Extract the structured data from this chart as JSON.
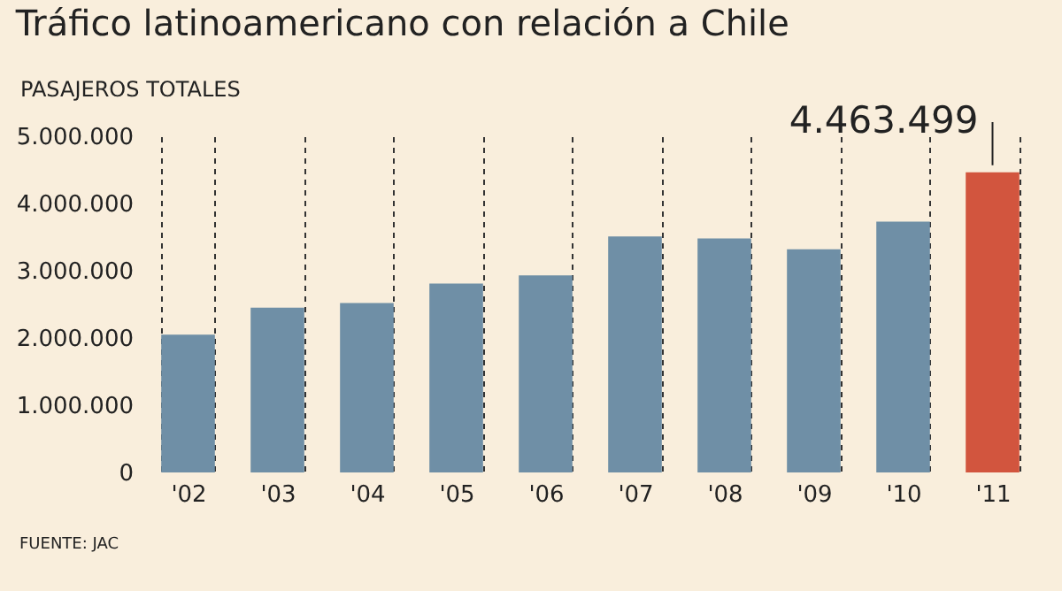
{
  "chart_data": {
    "type": "bar",
    "title": "Tráfico latinoamericano con relación a Chile",
    "ylabel": "PASAJEROS TOTALES",
    "categories": [
      "'02",
      "'03",
      "'04",
      "'05",
      "'06",
      "'07",
      "'08",
      "'09",
      "'10",
      "'11"
    ],
    "values": [
      2050000,
      2450000,
      2520000,
      2810000,
      2930000,
      3510000,
      3480000,
      3320000,
      3730000,
      4463499
    ],
    "colors": [
      "#6f8fa6",
      "#6f8fa6",
      "#6f8fa6",
      "#6f8fa6",
      "#6f8fa6",
      "#6f8fa6",
      "#6f8fa6",
      "#6f8fa6",
      "#6f8fa6",
      "#d2553e"
    ],
    "value_labels": [
      null,
      null,
      null,
      null,
      null,
      null,
      null,
      null,
      null,
      "4.463.499"
    ],
    "ylim": [
      0,
      5000000
    ],
    "yticks": [
      0,
      {
        "value": 1000000,
        "label": "1.000.000"
      },
      {
        "value": 2000000,
        "label": "2.000.000"
      },
      {
        "value": 3000000,
        "label": "3.000.000"
      },
      {
        "value": 4000000,
        "label": "4.000.000"
      },
      {
        "value": 5000000,
        "label": "5.000.000"
      }
    ],
    "grid": "x",
    "annotations": [
      "FUENTE: JAC"
    ]
  }
}
